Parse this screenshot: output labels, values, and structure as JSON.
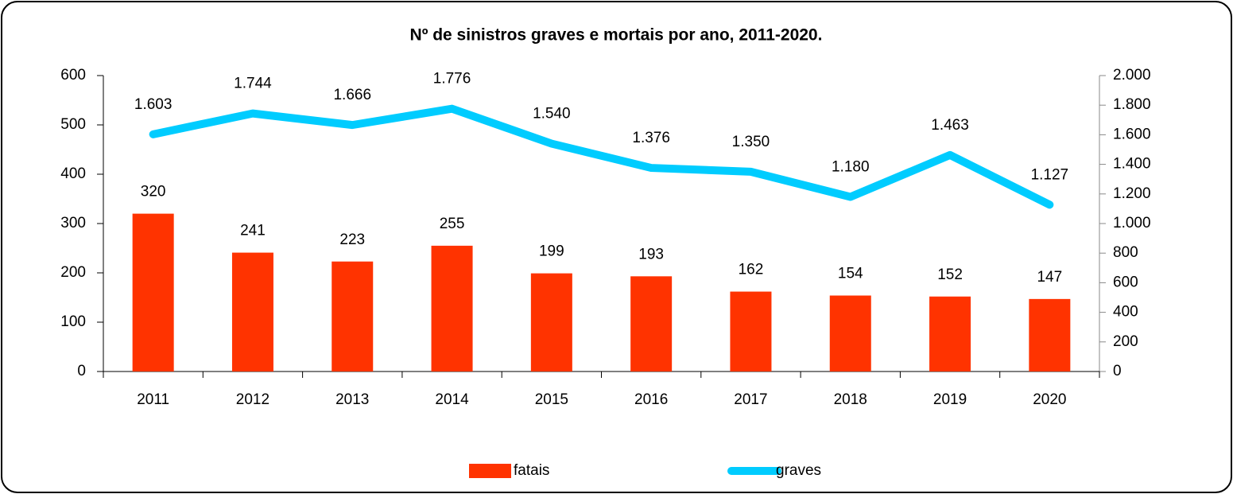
{
  "chart_data": {
    "type": "bar",
    "title": "Nº de sinistros graves e mortais por ano, 2011-2020.",
    "categories": [
      "2011",
      "2012",
      "2013",
      "2014",
      "2015",
      "2016",
      "2017",
      "2018",
      "2019",
      "2020"
    ],
    "series": [
      {
        "name": "fatais",
        "color": "#ff3300",
        "values": [
          320,
          241,
          223,
          255,
          199,
          193,
          162,
          154,
          152,
          147
        ]
      },
      {
        "name": "graves",
        "color": "#00ccff",
        "type": "line",
        "axis": "y2",
        "values": [
          1603,
          1744,
          1666,
          1776,
          1540,
          1376,
          1350,
          1180,
          1463,
          1127
        ],
        "value_labels": [
          "1.603",
          "1.744",
          "1.666",
          "1.776",
          "1.540",
          "1.376",
          "1.350",
          "1.180",
          "1.463",
          "1.127"
        ]
      }
    ],
    "ylim": [
      0,
      600
    ],
    "yticks": [
      0,
      100,
      200,
      300,
      400,
      500,
      600
    ],
    "y2lim": [
      0,
      2000
    ],
    "y2ticks": [
      0,
      200,
      400,
      600,
      800,
      {
        "value": 1000,
        "label": "1.000"
      },
      {
        "value": 1200,
        "label": "1.200"
      },
      {
        "value": 1400,
        "label": "1.400"
      },
      {
        "value": 1600,
        "label": "1.600"
      },
      {
        "value": 1800,
        "label": "1.800"
      },
      {
        "value": 2000,
        "label": "2.000"
      }
    ],
    "legend": "bottom"
  }
}
